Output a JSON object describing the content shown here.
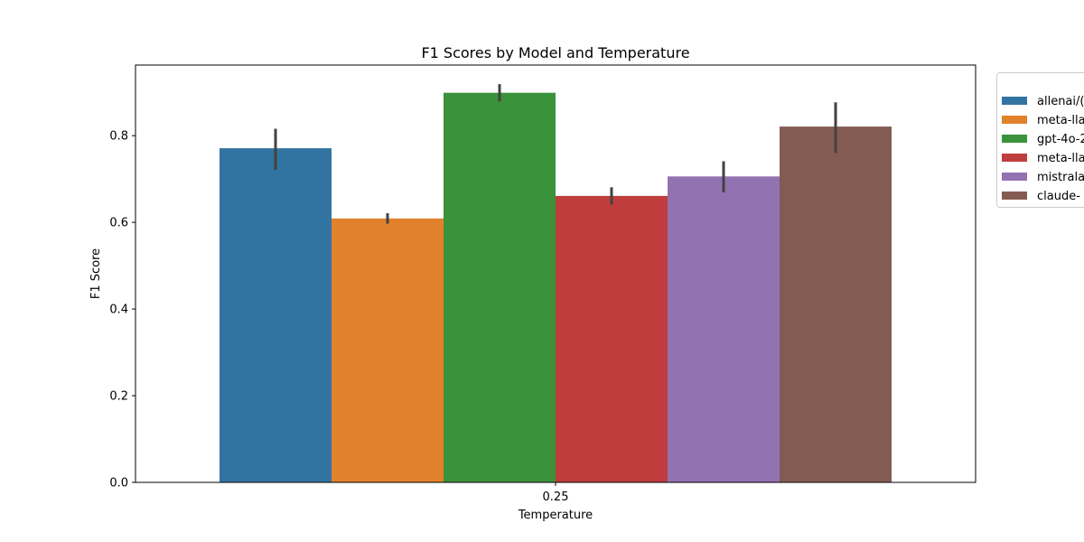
{
  "chart_data": {
    "type": "bar",
    "title": "F1 Scores by Model and Temperature",
    "xlabel": "Temperature",
    "ylabel": "F1 Score",
    "categories": [
      "0.25"
    ],
    "ylim": [
      0,
      0.963
    ],
    "yticks": [
      "0.0",
      "0.2",
      "0.4",
      "0.6",
      "0.8"
    ],
    "grid": false,
    "legend_position": "upper-right, outside plot",
    "series": [
      {
        "name": "allenai/(",
        "color": "#3274a1",
        "values": [
          0.771
        ],
        "error": [
          [
            0.721,
            0.816
          ]
        ]
      },
      {
        "name": "meta-lla",
        "color": "#e1812c",
        "values": [
          0.609
        ],
        "error": [
          [
            0.597,
            0.621
          ]
        ]
      },
      {
        "name": "gpt-4o-2",
        "color": "#3a923a",
        "values": [
          0.899
        ],
        "error": [
          [
            0.879,
            0.919
          ]
        ]
      },
      {
        "name": "meta-lla",
        "color": "#c03d3e",
        "values": [
          0.661
        ],
        "error": [
          [
            0.641,
            0.681
          ]
        ]
      },
      {
        "name": "mistrala",
        "color": "#9372b2",
        "values": [
          0.706
        ],
        "error": [
          [
            0.669,
            0.741
          ]
        ]
      },
      {
        "name": "claude-",
        "color": "#845b53",
        "values": [
          0.821
        ],
        "error": [
          [
            0.76,
            0.877
          ]
        ]
      }
    ]
  }
}
